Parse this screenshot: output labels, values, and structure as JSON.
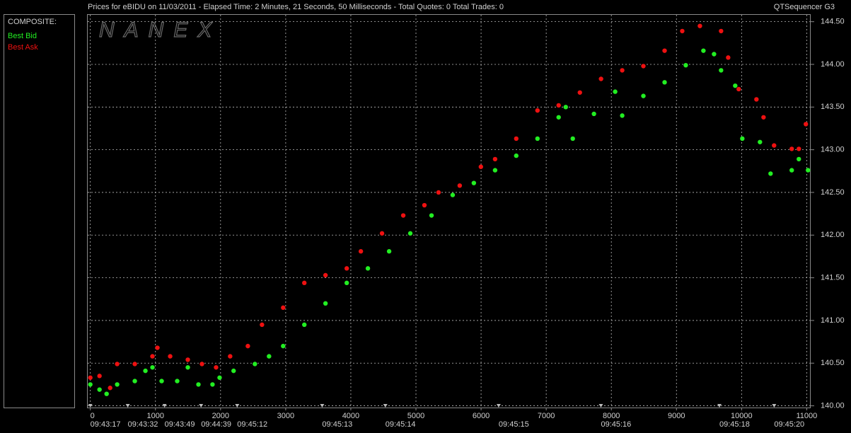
{
  "chart_data": {
    "type": "scatter",
    "title": "Prices for  eBIDU  on  11/03/2011  -  Elapsed Time: 2 Minutes, 21 Seconds, 50 Milliseconds  -  Total Quotes: 0  Total Trades: 0",
    "source": "QTSequencer G3",
    "watermark": "NANEX",
    "legend_title": "COMPOSITE:",
    "xlim": [
      -40,
      11050
    ],
    "xticks": [
      0,
      1000,
      2000,
      3000,
      4000,
      5000,
      6000,
      7000,
      8000,
      9000,
      10000,
      11000
    ],
    "time_ticks": [
      {
        "value": 0,
        "label": "09:43:17"
      },
      {
        "value": 575,
        "label": "09:43:32"
      },
      {
        "value": 1140,
        "label": "09:43:49"
      },
      {
        "value": 1700,
        "label": "09:44:39"
      },
      {
        "value": 2255,
        "label": "09:45:12"
      },
      {
        "value": 3560,
        "label": "09:45:13"
      },
      {
        "value": 4530,
        "label": "09:45:14"
      },
      {
        "value": 6270,
        "label": "09:45:15"
      },
      {
        "value": 7840,
        "label": "09:45:16"
      },
      {
        "value": 9660,
        "label": "09:45:18"
      },
      {
        "value": 10500,
        "label": "09:45:20"
      }
    ],
    "ylim": [
      139.98,
      144.58
    ],
    "yticks": [
      {
        "value": 140,
        "label": "140.00"
      },
      {
        "value": 140.5,
        "label": "140.50"
      },
      {
        "value": 141,
        "label": "141.00"
      },
      {
        "value": 141.5,
        "label": "141.50"
      },
      {
        "value": 142,
        "label": "142.00"
      },
      {
        "value": 142.5,
        "label": "142.50"
      },
      {
        "value": 143,
        "label": "143.00"
      },
      {
        "value": 143.5,
        "label": "143.50"
      },
      {
        "value": 144,
        "label": "144.00"
      },
      {
        "value": 144.5,
        "label": "144.50"
      }
    ],
    "grid": true,
    "series": [
      {
        "name": "Best Bid",
        "color": "#22ee22",
        "x": [
          0,
          141,
          250,
          412,
          683,
          846,
          954,
          1095,
          1334,
          1497,
          1660,
          1876,
          1985,
          2200,
          2527,
          2744,
          2961,
          3286,
          3611,
          3937,
          4262,
          4588,
          4913,
          5239,
          5564,
          5889,
          6215,
          6540,
          6866,
          7191,
          7300,
          7408,
          7733,
          8059,
          8167,
          8492,
          8818,
          9143,
          9414,
          9577,
          9685,
          9902,
          10011,
          10282,
          10445,
          10770,
          10879,
          11020
        ],
        "values": [
          140.25,
          140.19,
          140.14,
          140.25,
          140.29,
          140.41,
          140.45,
          140.29,
          140.29,
          140.45,
          140.25,
          140.25,
          140.33,
          140.41,
          140.49,
          140.58,
          140.7,
          140.95,
          141.2,
          141.44,
          141.61,
          141.81,
          142.02,
          142.23,
          142.47,
          142.61,
          142.76,
          142.93,
          143.13,
          143.38,
          143.5,
          143.13,
          143.42,
          143.68,
          143.4,
          143.63,
          143.79,
          143.99,
          144.16,
          144.12,
          143.93,
          143.75,
          143.13,
          143.09,
          142.72,
          142.76,
          142.89,
          142.76
        ]
      },
      {
        "name": "Best Ask",
        "color": "#ee1111",
        "x": [
          0,
          141,
          304,
          412,
          683,
          954,
          1030,
          1226,
          1497,
          1714,
          1931,
          2147,
          2419,
          2636,
          2961,
          3286,
          3611,
          3937,
          4154,
          4479,
          4805,
          5130,
          5347,
          5672,
          5997,
          6215,
          6540,
          6866,
          7191,
          7517,
          7842,
          8167,
          8492,
          8818,
          9089,
          9360,
          9685,
          9794,
          9956,
          10228,
          10337,
          10499,
          10770,
          10879,
          10987
        ],
        "values": [
          140.33,
          140.35,
          140.21,
          140.49,
          140.49,
          140.58,
          140.68,
          140.58,
          140.54,
          140.49,
          140.45,
          140.58,
          140.7,
          140.95,
          141.15,
          141.44,
          141.53,
          141.61,
          141.81,
          142.02,
          142.23,
          142.35,
          142.5,
          142.58,
          142.8,
          142.89,
          143.13,
          143.46,
          143.52,
          143.67,
          143.83,
          143.93,
          143.98,
          144.16,
          144.39,
          144.45,
          144.39,
          144.08,
          143.71,
          143.59,
          143.38,
          143.05,
          143.01,
          143.01,
          143.3
        ]
      }
    ]
  }
}
